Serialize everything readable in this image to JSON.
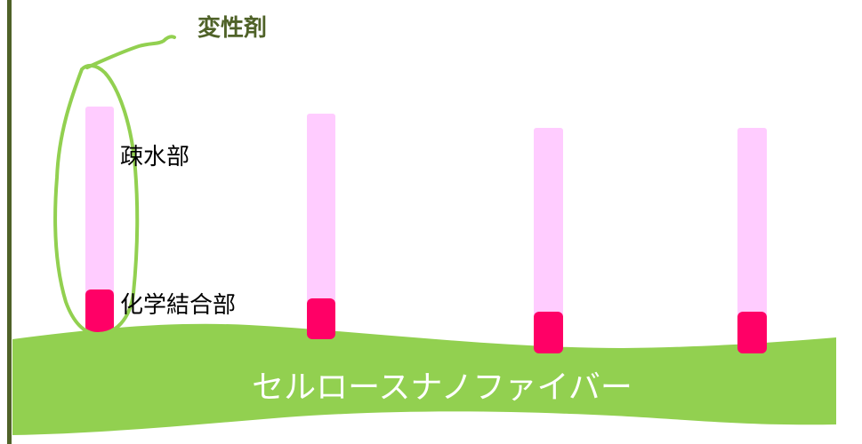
{
  "labels": {
    "modifier": "変性剤",
    "hydrophobic": "疎水部",
    "chemical_bond": "化学結合部",
    "fiber": "セルロースナノファイバー"
  },
  "colors": {
    "fiber_green": "#92d050",
    "outline_green": "#92d050",
    "hydrophobic_pink": "#ffccff",
    "bond_magenta": "#ff0066",
    "frame_olive": "#4f6228",
    "modifier_text": "#4f6228",
    "label_text": "#000000",
    "fiber_text": "#ffffff"
  },
  "molecules": [
    {
      "id": 1,
      "circled": true
    },
    {
      "id": 2,
      "circled": false
    },
    {
      "id": 3,
      "circled": false
    },
    {
      "id": 4,
      "circled": false
    }
  ]
}
